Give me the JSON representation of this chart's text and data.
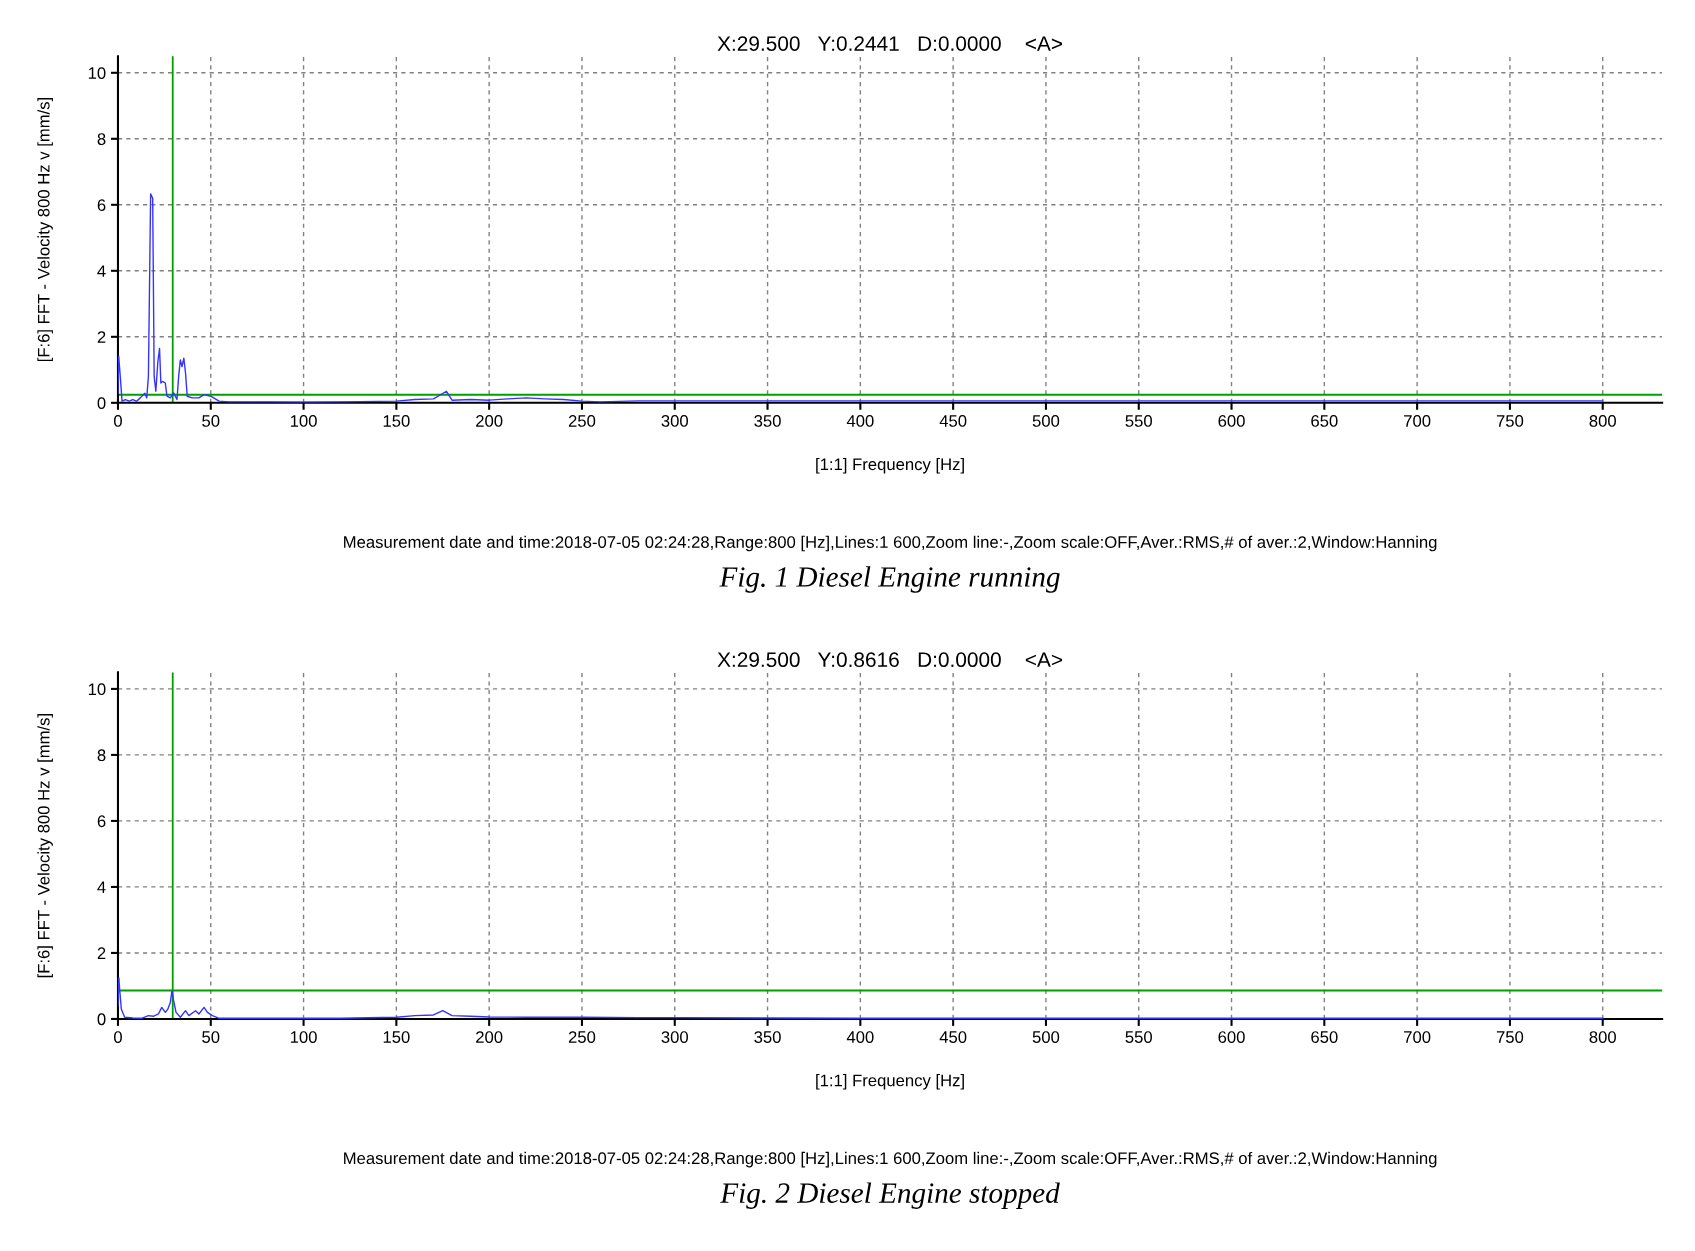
{
  "chart_data": [
    {
      "type": "line",
      "title": "X:29.500   Y:0.2441   D:0.0000    <A>",
      "xlabel": "[1:1] Frequency [Hz]",
      "ylabel": "[F:6] FFT - Velocity 800 Hz v [mm/s]",
      "annotations": [
        "Measurement date and time:2018-07-05 02:24:28,Range:800 [Hz],Lines:1 600,Zoom line:-,Zoom scale:OFF,Aver.:RMS,# of aver.:2,Window:Hanning",
        "Fig. 1 Diesel Engine running"
      ],
      "series": [
        {
          "color": "#3333ff",
          "x": [
            0,
            0.4,
            1.3,
            2.2,
            4,
            6,
            8,
            10,
            12,
            14.5,
            15.5,
            16.4,
            17.6,
            18.7,
            19.5,
            20.4,
            21.5,
            22.4,
            23.1,
            24,
            25.5,
            26.4,
            28.2,
            30,
            31.8,
            32.7,
            33.6,
            34.5,
            35.5,
            36.4,
            37.3,
            40,
            43.6,
            46.4,
            50,
            54.5,
            60,
            80,
            100,
            120,
            150,
            160,
            170,
            177,
            180,
            190,
            200,
            210,
            220,
            230,
            240,
            250,
            260,
            280,
            300,
            350,
            400,
            450,
            500,
            550,
            600,
            650,
            700,
            750,
            800
          ],
          "values": [
            0.3,
            1.41,
            0.75,
            0.05,
            0.1,
            0.05,
            0.1,
            0.05,
            0.15,
            0.29,
            0.15,
            0.8,
            6.33,
            6.2,
            0.8,
            0.35,
            1.25,
            1.65,
            0.6,
            0.65,
            0.6,
            0.2,
            0.15,
            0.3,
            0.1,
            0.8,
            1.3,
            1.1,
            1.35,
            0.9,
            0.2,
            0.15,
            0.15,
            0.25,
            0.2,
            0.05,
            0.03,
            0.03,
            0.02,
            0.03,
            0.05,
            0.1,
            0.12,
            0.35,
            0.08,
            0.1,
            0.08,
            0.12,
            0.15,
            0.12,
            0.1,
            0.05,
            0.03,
            0.06,
            0.06,
            0.06,
            0.06,
            0.06,
            0.06,
            0.06,
            0.06,
            0.06,
            0.06,
            0.06,
            0.06
          ]
        }
      ],
      "ref_lines": [
        {
          "axis": "x",
          "value": 29.5,
          "color": "#00a000"
        },
        {
          "axis": "y",
          "value": 0.2441,
          "color": "#00a000"
        }
      ],
      "xlim": [
        0,
        832
      ],
      "xticks": [
        0,
        50,
        100,
        150,
        200,
        250,
        300,
        350,
        400,
        450,
        500,
        550,
        600,
        650,
        700,
        750,
        800
      ],
      "ylim": [
        0,
        10.5
      ],
      "yticks": [
        0,
        2,
        4,
        6,
        8,
        10
      ],
      "grid": true,
      "legend": false
    },
    {
      "type": "line",
      "title": "X:29.500   Y:0.8616   D:0.0000    <A>",
      "xlabel": "[1:1] Frequency [Hz]",
      "ylabel": "[F:6] FFT - Velocity 800 Hz v [mm/s]",
      "annotations": [
        "Measurement date and time:2018-07-05 02:24:28,Range:800 [Hz],Lines:1 600,Zoom line:-,Zoom scale:OFF,Aver.:RMS,# of aver.:2,Window:Hanning",
        "Fig. 2 Diesel Engine stopped"
      ],
      "series": [
        {
          "color": "#3333ff",
          "x": [
            0,
            0.5,
            0.9,
            1.8,
            3.6,
            8,
            12.7,
            16.4,
            19,
            21.8,
            23.6,
            25.5,
            26.9,
            28.2,
            29.1,
            30,
            31.3,
            33.6,
            36.4,
            38.2,
            41.8,
            43.6,
            46.4,
            48.2,
            50.9,
            54.5,
            60,
            80,
            100,
            120,
            150,
            160,
            170,
            175,
            180,
            190,
            200,
            220,
            250,
            280,
            300,
            350,
            400,
            450,
            500,
            550,
            600,
            650,
            700,
            750,
            800
          ],
          "values": [
            0.4,
            1.24,
            0.9,
            0.3,
            0.05,
            0.03,
            0.02,
            0.1,
            0.08,
            0.15,
            0.35,
            0.2,
            0.3,
            0.5,
            0.85,
            0.55,
            0.2,
            0.05,
            0.25,
            0.1,
            0.25,
            0.15,
            0.35,
            0.2,
            0.1,
            0.02,
            0.02,
            0.02,
            0.02,
            0.02,
            0.05,
            0.1,
            0.12,
            0.25,
            0.1,
            0.08,
            0.06,
            0.05,
            0.05,
            0.04,
            0.04,
            0.03,
            0.02,
            0.02,
            0.02,
            0.02,
            0.02,
            0.02,
            0.02,
            0.02,
            0.02
          ]
        }
      ],
      "ref_lines": [
        {
          "axis": "x",
          "value": 29.5,
          "color": "#00a000"
        },
        {
          "axis": "y",
          "value": 0.8616,
          "color": "#00a000"
        }
      ],
      "xlim": [
        0,
        832
      ],
      "xticks": [
        0,
        50,
        100,
        150,
        200,
        250,
        300,
        350,
        400,
        450,
        500,
        550,
        600,
        650,
        700,
        750,
        800
      ],
      "ylim": [
        0,
        10.5
      ],
      "yticks": [
        0,
        2,
        4,
        6,
        8,
        10
      ],
      "grid": true,
      "legend": false
    }
  ]
}
